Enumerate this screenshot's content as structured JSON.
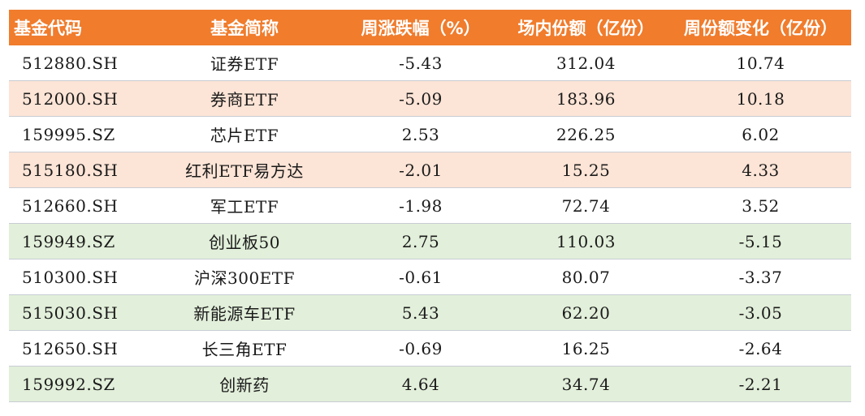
{
  "table": {
    "headers": [
      "基金代码",
      "基金简称",
      "周涨跌幅（%）",
      "场内份额（亿份）",
      "周份额变化（亿份）"
    ],
    "rows": [
      {
        "code": "512880.SH",
        "name": "证券ETF",
        "weekly_change": "-5.43",
        "shares": "312.04",
        "share_change": "10.74",
        "highlight": "none"
      },
      {
        "code": "512000.SH",
        "name": "券商ETF",
        "weekly_change": "-5.09",
        "shares": "183.96",
        "share_change": "10.18",
        "highlight": "peach"
      },
      {
        "code": "159995.SZ",
        "name": "芯片ETF",
        "weekly_change": "2.53",
        "shares": "226.25",
        "share_change": "6.02",
        "highlight": "none"
      },
      {
        "code": "515180.SH",
        "name": "红利ETF易方达",
        "weekly_change": "-2.01",
        "shares": "15.25",
        "share_change": "4.33",
        "highlight": "peach"
      },
      {
        "code": "512660.SH",
        "name": "军工ETF",
        "weekly_change": "-1.98",
        "shares": "72.74",
        "share_change": "3.52",
        "highlight": "none"
      },
      {
        "code": "159949.SZ",
        "name": "创业板50",
        "weekly_change": "2.75",
        "shares": "110.03",
        "share_change": "-5.15",
        "highlight": "green"
      },
      {
        "code": "510300.SH",
        "name": "沪深300ETF",
        "weekly_change": "-0.61",
        "shares": "80.07",
        "share_change": "-3.37",
        "highlight": "none"
      },
      {
        "code": "515030.SH",
        "name": "新能源车ETF",
        "weekly_change": "5.43",
        "shares": "62.20",
        "share_change": "-3.05",
        "highlight": "green"
      },
      {
        "code": "512650.SH",
        "name": "长三角ETF",
        "weekly_change": "-0.69",
        "shares": "16.25",
        "share_change": "-2.64",
        "highlight": "none"
      },
      {
        "code": "159992.SZ",
        "name": "创新药",
        "weekly_change": "4.64",
        "shares": "34.74",
        "share_change": "-2.21",
        "highlight": "green"
      }
    ]
  },
  "colors": {
    "header_bg": "#f07c2c",
    "header_text": "#ffffff",
    "peach_row": "#fce4d6",
    "green_row": "#e2efda",
    "divider": "#c8cdd4"
  }
}
